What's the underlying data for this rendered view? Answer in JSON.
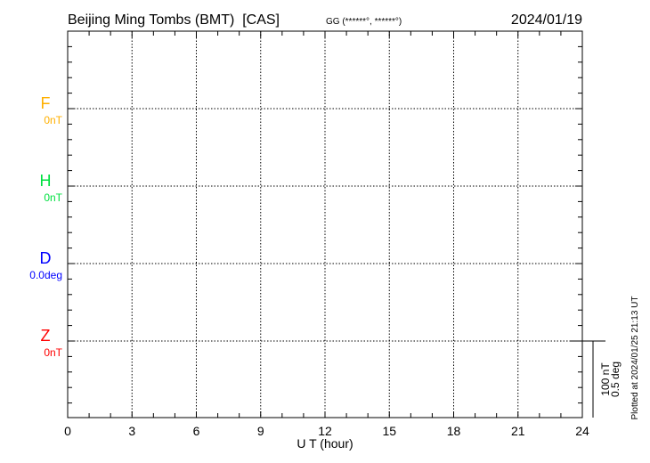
{
  "header": {
    "station": "Beijing Ming Tombs (BMT)  [CAS]",
    "coords": "GG (******°, ******°)",
    "date": "2024/01/19"
  },
  "footer": {
    "plotted": "Plotted at 2024/01/25 21:13 UT"
  },
  "scale_bar": {
    "nt": "100 nT",
    "deg": "0.5 deg"
  },
  "chart_data": {
    "type": "line",
    "xlabel": "U T (hour)",
    "xlim": [
      0,
      24
    ],
    "xticks": [
      "0",
      "3",
      "6",
      "9",
      "12",
      "15",
      "18",
      "21",
      "24"
    ],
    "grid": true,
    "channels": [
      {
        "name": "F",
        "baseline": "0nT",
        "color": "#ffb000"
      },
      {
        "name": "H",
        "baseline": "0nT",
        "color": "#00e040"
      },
      {
        "name": "D",
        "baseline": "0.0deg",
        "color": "#0000ff"
      },
      {
        "name": "Z",
        "baseline": "0nT",
        "color": "#ff0000"
      }
    ],
    "series": []
  }
}
